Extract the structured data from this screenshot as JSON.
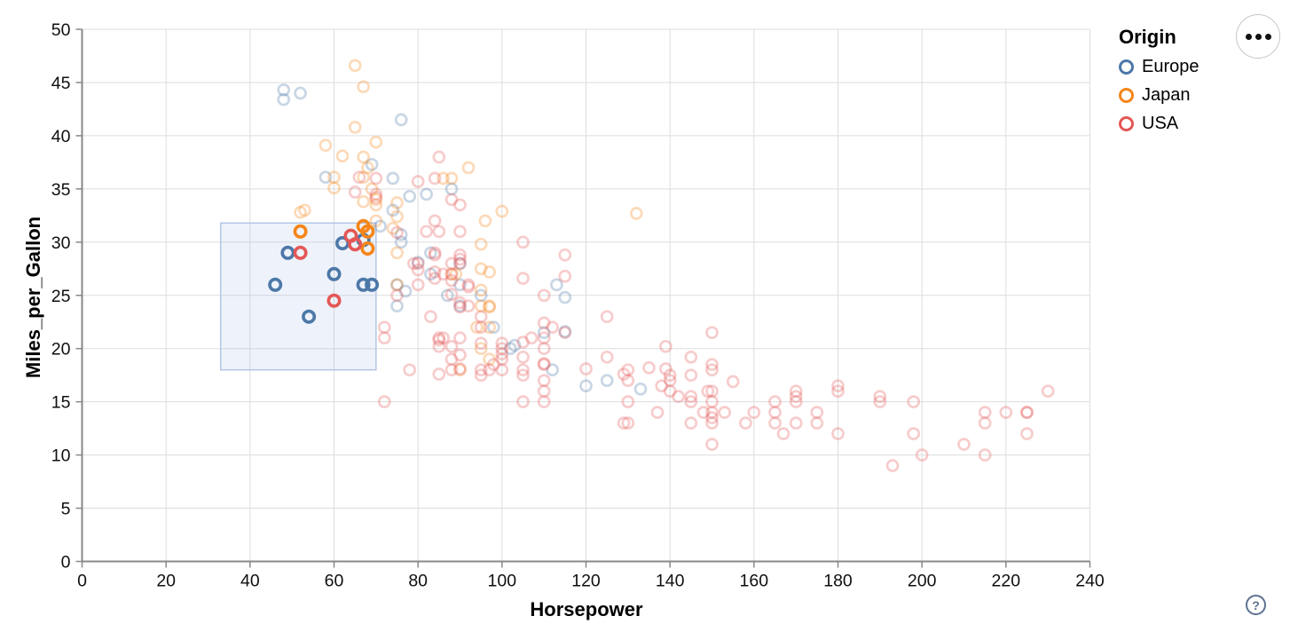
{
  "legend": {
    "title": "Origin",
    "entries": [
      {
        "label": "Europe",
        "color": "#4c78a8"
      },
      {
        "label": "Japan",
        "color": "#f58518"
      },
      {
        "label": "USA",
        "color": "#e45756"
      }
    ]
  },
  "actions_button": {
    "icon": "ellipsis"
  },
  "help_button": {
    "label": "?"
  },
  "colors": {
    "grid": "#dddddd",
    "domain": "#888888",
    "tick_label": "#0f0f0f",
    "brush_fill": "rgba(120,158,215,0.13)",
    "brush_stroke": "#b3c6e6",
    "europe": "#4c78a8",
    "japan": "#f58518",
    "usa": "#e45756"
  },
  "chart_data": {
    "type": "scatter",
    "title": "",
    "xlabel": "Horsepower",
    "ylabel": "Miles_per_Gallon",
    "xlim": [
      0,
      240
    ],
    "ylim": [
      0,
      50
    ],
    "x_ticks": [
      0,
      20,
      40,
      60,
      80,
      100,
      120,
      140,
      160,
      180,
      200,
      220,
      240
    ],
    "y_ticks": [
      0,
      5,
      10,
      15,
      20,
      25,
      30,
      35,
      40,
      45,
      50
    ],
    "grid": true,
    "legend_position": "top-right",
    "brush": {
      "hp_range": [
        33,
        70
      ],
      "mpg_range": [
        18,
        31.8
      ]
    },
    "series": [
      {
        "name": "Europe",
        "color": "#4c78a8",
        "selected": [
          [
            46,
            26
          ],
          [
            49,
            29
          ],
          [
            54,
            23
          ],
          [
            60,
            27
          ],
          [
            62,
            29.9
          ],
          [
            67,
            30.2
          ],
          [
            67,
            26
          ],
          [
            69,
            26
          ]
        ],
        "unselected": [
          [
            48,
            44.3
          ],
          [
            48,
            43.4
          ],
          [
            52,
            44
          ],
          [
            76,
            41.5
          ],
          [
            69,
            37.3
          ],
          [
            58,
            36.1
          ],
          [
            74,
            36
          ],
          [
            88,
            35
          ],
          [
            78,
            34.3
          ],
          [
            82,
            34.5
          ],
          [
            74,
            33
          ],
          [
            71,
            31.5
          ],
          [
            76,
            30.7
          ],
          [
            76,
            30
          ],
          [
            80,
            28.1
          ],
          [
            90,
            28
          ],
          [
            83,
            29
          ],
          [
            83,
            27
          ],
          [
            87,
            25
          ],
          [
            90,
            24
          ],
          [
            95,
            25
          ],
          [
            90,
            26
          ],
          [
            75,
            26
          ],
          [
            75,
            24
          ],
          [
            98,
            22
          ],
          [
            102,
            20
          ],
          [
            110,
            21.5
          ],
          [
            115,
            21.6
          ],
          [
            113,
            26
          ],
          [
            115,
            24.8
          ],
          [
            103,
            20.3
          ],
          [
            77,
            25.4
          ],
          [
            112,
            18
          ],
          [
            120,
            16.5
          ],
          [
            125,
            17
          ],
          [
            133,
            16.2
          ]
        ]
      },
      {
        "name": "Japan",
        "color": "#f58518",
        "selected": [
          [
            52,
            31
          ],
          [
            67,
            31.5
          ],
          [
            68,
            31
          ],
          [
            68,
            29.4
          ]
        ],
        "unselected": [
          [
            65,
            46.6
          ],
          [
            67,
            44.6
          ],
          [
            65,
            40.8
          ],
          [
            70,
            39.4
          ],
          [
            58,
            39.1
          ],
          [
            62,
            38.1
          ],
          [
            67,
            38
          ],
          [
            68,
            37
          ],
          [
            92,
            37
          ],
          [
            60,
            36.1
          ],
          [
            67,
            36.1
          ],
          [
            88,
            36
          ],
          [
            86,
            36
          ],
          [
            60,
            35.1
          ],
          [
            69,
            35
          ],
          [
            75,
            33.7
          ],
          [
            70,
            33.5
          ],
          [
            53,
            33
          ],
          [
            67,
            33.8
          ],
          [
            52,
            32.8
          ],
          [
            132,
            32.7
          ],
          [
            75,
            32.4
          ],
          [
            96,
            32
          ],
          [
            100,
            32.9
          ],
          [
            70,
            32
          ],
          [
            74,
            31.3
          ],
          [
            95,
            29.8
          ],
          [
            70,
            34
          ],
          [
            97,
            27.2
          ],
          [
            95,
            27.5
          ],
          [
            88,
            27
          ],
          [
            89,
            27
          ],
          [
            95,
            24
          ],
          [
            97,
            24
          ],
          [
            94,
            22
          ],
          [
            97,
            22
          ],
          [
            95,
            25.5
          ],
          [
            75,
            29
          ],
          [
            75,
            26
          ],
          [
            97,
            19
          ],
          [
            90,
            18
          ],
          [
            95,
            20
          ],
          [
            97,
            23.9
          ]
        ]
      },
      {
        "name": "USA",
        "color": "#e45756",
        "selected": [
          [
            52,
            29
          ],
          [
            60,
            24.5
          ],
          [
            64,
            30.6
          ],
          [
            65,
            29.8
          ]
        ],
        "unselected": [
          [
            130,
            18
          ],
          [
            165,
            15
          ],
          [
            150,
            18
          ],
          [
            150,
            16
          ],
          [
            140,
            17
          ],
          [
            198,
            15
          ],
          [
            220,
            14
          ],
          [
            215,
            14
          ],
          [
            225,
            14
          ],
          [
            190,
            15
          ],
          [
            170,
            15
          ],
          [
            160,
            14
          ],
          [
            150,
            15
          ],
          [
            225,
            14
          ],
          [
            215,
            10
          ],
          [
            200,
            10
          ],
          [
            210,
            11
          ],
          [
            193,
            9
          ],
          [
            165,
            14
          ],
          [
            175,
            14
          ],
          [
            153,
            14
          ],
          [
            150,
            14
          ],
          [
            180,
            12
          ],
          [
            170,
            13
          ],
          [
            165,
            13
          ],
          [
            198,
            12
          ],
          [
            145,
            13
          ],
          [
            137,
            14
          ],
          [
            150,
            13
          ],
          [
            158,
            13
          ],
          [
            215,
            13
          ],
          [
            225,
            12
          ],
          [
            175,
            13
          ],
          [
            167,
            12
          ],
          [
            145,
            15
          ],
          [
            150,
            11
          ],
          [
            230,
            16
          ],
          [
            142,
            15.5
          ],
          [
            155,
            16.9
          ],
          [
            138,
            16.5
          ],
          [
            135,
            18.2
          ],
          [
            129,
            17.6
          ],
          [
            130,
            17
          ],
          [
            125,
            19.2
          ],
          [
            150,
            18.5
          ],
          [
            125,
            23
          ],
          [
            139,
            18.1
          ],
          [
            140,
            17.5
          ],
          [
            145,
            19.2
          ],
          [
            150,
            21.5
          ],
          [
            139,
            20.2
          ],
          [
            129,
            13
          ],
          [
            140,
            16
          ],
          [
            148,
            14
          ],
          [
            170,
            16
          ],
          [
            145,
            17.5
          ],
          [
            145,
            15.5
          ],
          [
            130,
            15
          ],
          [
            170,
            15.5
          ],
          [
            190,
            15.5
          ],
          [
            180,
            16
          ],
          [
            149,
            16
          ],
          [
            180,
            16.5
          ],
          [
            130,
            13
          ],
          [
            150,
            13.5
          ],
          [
            95,
            22
          ],
          [
            97,
            18
          ],
          [
            85,
            21
          ],
          [
            90,
            21
          ],
          [
            100,
            19
          ],
          [
            88,
            19
          ],
          [
            88,
            18
          ],
          [
            105,
            18
          ],
          [
            100,
            18
          ],
          [
            95,
            23
          ],
          [
            105,
            15
          ],
          [
            100,
            20
          ],
          [
            110,
            17
          ],
          [
            110,
            16
          ],
          [
            110,
            15
          ],
          [
            95,
            18
          ],
          [
            110,
            21
          ],
          [
            110,
            20
          ],
          [
            110,
            18.5
          ],
          [
            95,
            17.5
          ],
          [
            78,
            18
          ],
          [
            105,
            17.5
          ],
          [
            100,
            19.5
          ],
          [
            98,
            18.5
          ],
          [
            95,
            20.5
          ],
          [
            85,
            20.2
          ],
          [
            88,
            25.1
          ],
          [
            100,
            20.5
          ],
          [
            90,
            19.4
          ],
          [
            105,
            20.6
          ],
          [
            85,
            20.8
          ],
          [
            110,
            18.6
          ],
          [
            120,
            18.1
          ],
          [
            105,
            19.2
          ],
          [
            107,
            21
          ],
          [
            90,
            23.9
          ],
          [
            80,
            27.4
          ],
          [
            90,
            28.4
          ],
          [
            90,
            33.5
          ],
          [
            90,
            28.8
          ],
          [
            88,
            26.4
          ],
          [
            90,
            24.3
          ],
          [
            90,
            18.1
          ],
          [
            105,
            30
          ],
          [
            115,
            21.5
          ],
          [
            110,
            22.4
          ],
          [
            84,
            27.2
          ],
          [
            92,
            25.8
          ],
          [
            84,
            28.8
          ],
          [
            84,
            26.6
          ],
          [
            105,
            26.6
          ],
          [
            88,
            20.2
          ],
          [
            85,
            17.6
          ],
          [
            88,
            28
          ],
          [
            88,
            27
          ],
          [
            88,
            34
          ],
          [
            85,
            31
          ],
          [
            84,
            29
          ],
          [
            90,
            31
          ],
          [
            92,
            24
          ],
          [
            86,
            27
          ],
          [
            84,
            32
          ],
          [
            79,
            28
          ],
          [
            82,
            31
          ],
          [
            92,
            26
          ],
          [
            112,
            22
          ],
          [
            85,
            38
          ],
          [
            84,
            36
          ],
          [
            110,
            25
          ],
          [
            115,
            28.8
          ],
          [
            115,
            26.8
          ],
          [
            90,
            28
          ],
          [
            75,
            25
          ],
          [
            72,
            22
          ],
          [
            80,
            28
          ],
          [
            86,
            21
          ],
          [
            72,
            21
          ],
          [
            80,
            26
          ],
          [
            72,
            15
          ],
          [
            83,
            23
          ],
          [
            66,
            36.1
          ],
          [
            75,
            30.9
          ],
          [
            70,
            34.2
          ],
          [
            70,
            34.5
          ],
          [
            80,
            35.7
          ],
          [
            65,
            34.7
          ],
          [
            70,
            36
          ]
        ]
      }
    ]
  }
}
